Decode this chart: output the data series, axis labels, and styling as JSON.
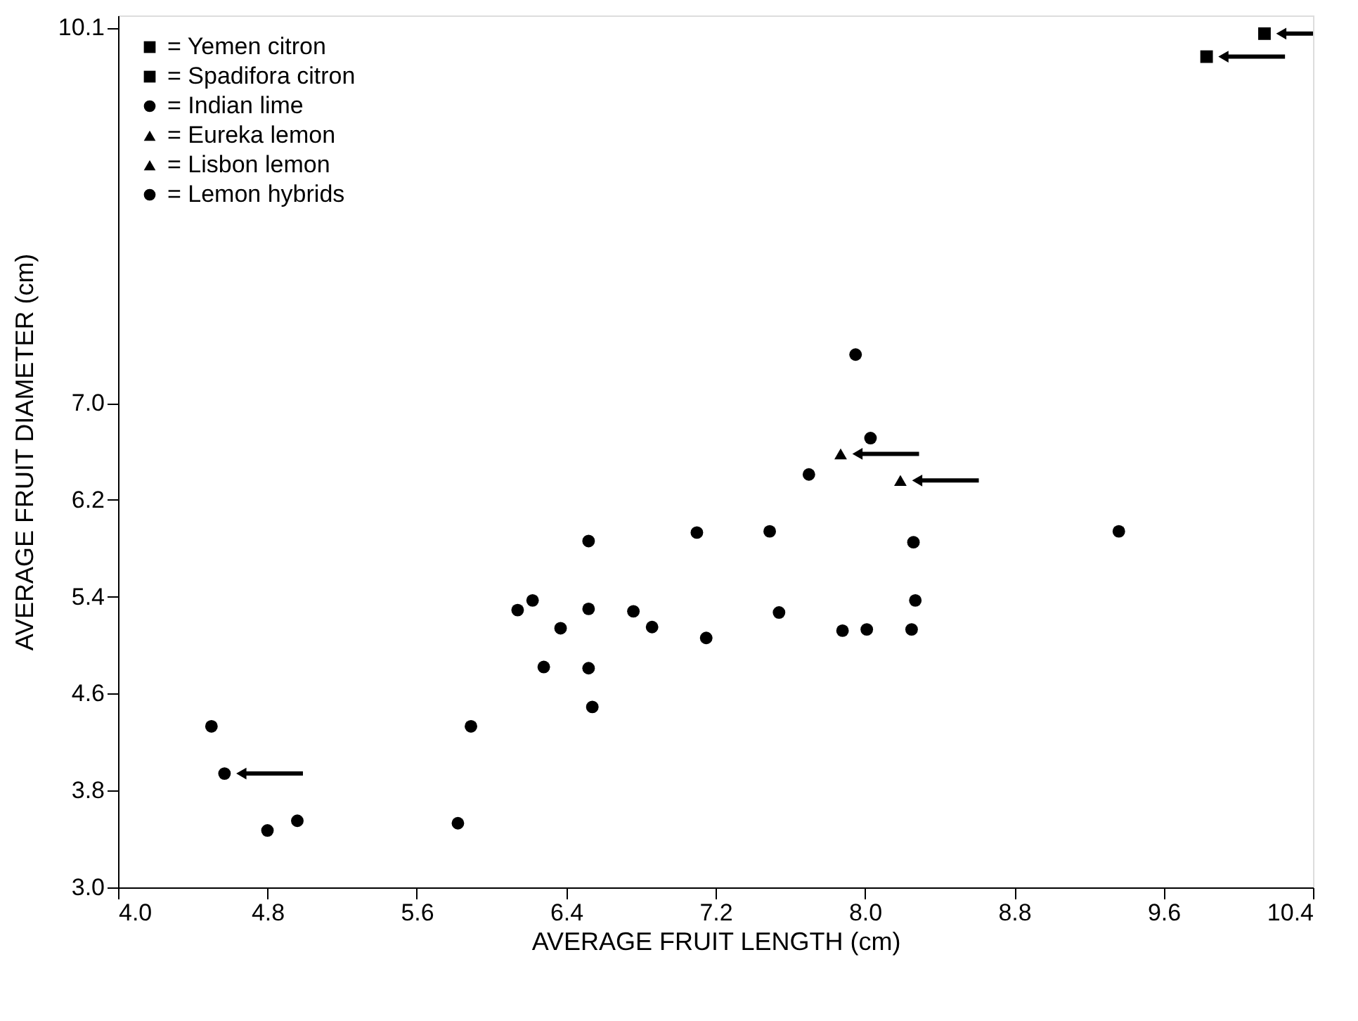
{
  "chart_data": {
    "type": "scatter",
    "xlabel": "AVERAGE FRUIT LENGTH (cm)",
    "ylabel": "AVERAGE FRUIT DIAMETER (cm)",
    "xlim": [
      4.0,
      10.4
    ],
    "xticks": [
      {
        "value": 4.0,
        "label": "4.0"
      },
      4.8,
      5.6,
      6.4,
      7.2,
      {
        "value": 8.0,
        "label": "8.0"
      },
      8.8,
      9.6,
      10.4
    ],
    "ylim": [
      3.0,
      10.2
    ],
    "yticks": [
      {
        "value": 3.0,
        "label": "3.0"
      },
      3.8,
      4.6,
      5.4,
      6.2,
      {
        "value": 7.0,
        "label": "7.0"
      },
      10.1
    ],
    "grid": false,
    "legend": "top left",
    "series": [
      {
        "name": "= Yemen citron",
        "color": "#000000",
        "marker": "square",
        "x": [
          10.14
        ],
        "values": [
          10.05
        ]
      },
      {
        "name": "= Spadifora citron",
        "color": "#000000",
        "marker": "square",
        "x": [
          9.83
        ],
        "values": [
          9.86
        ]
      },
      {
        "name": "= Indian lime",
        "color": "#000000",
        "marker": "circle",
        "x": [
          4.57
        ],
        "values": [
          3.94
        ]
      },
      {
        "name": "= Eureka lemon",
        "color": "#000000",
        "marker": "triangle",
        "x": [
          8.19
        ],
        "values": [
          6.36
        ]
      },
      {
        "name": "= Lisbon lemon",
        "color": "#000000",
        "marker": "triangle",
        "x": [
          7.87
        ],
        "values": [
          6.58
        ]
      },
      {
        "name": "= Lemon hybrids",
        "color": "#000000",
        "marker": "circle",
        "x": [
          7.95,
          8.03,
          7.7,
          6.52,
          7.1,
          7.49,
          8.26,
          9.36,
          6.22,
          6.14,
          6.52,
          6.76,
          7.54,
          8.27,
          6.37,
          6.86,
          7.15,
          7.88,
          8.01,
          8.25,
          6.28,
          6.52,
          6.54,
          5.89,
          4.5,
          4.8,
          4.96,
          5.82
        ],
        "values": [
          7.4,
          6.71,
          6.41,
          5.86,
          5.93,
          5.94,
          5.85,
          5.94,
          5.37,
          5.29,
          5.3,
          5.28,
          5.27,
          5.37,
          5.14,
          5.15,
          5.06,
          5.12,
          5.13,
          5.13,
          4.82,
          4.81,
          4.49,
          4.33,
          4.33,
          3.47,
          3.55,
          3.53
        ]
      }
    ]
  }
}
